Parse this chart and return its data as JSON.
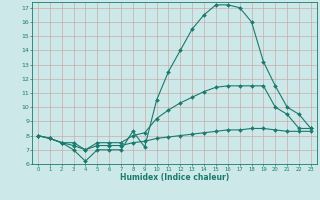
{
  "xlabel": "Humidex (Indice chaleur)",
  "xlim": [
    -0.5,
    23.5
  ],
  "ylim": [
    6,
    17.4
  ],
  "xticks": [
    0,
    1,
    2,
    3,
    4,
    5,
    6,
    7,
    8,
    9,
    10,
    11,
    12,
    13,
    14,
    15,
    16,
    17,
    18,
    19,
    20,
    21,
    22,
    23
  ],
  "yticks": [
    6,
    7,
    8,
    9,
    10,
    11,
    12,
    13,
    14,
    15,
    16,
    17
  ],
  "bg_color": "#cde8e8",
  "line_color": "#1a7a6e",
  "grid_color": "#b0d4d4",
  "curve1_x": [
    0,
    1,
    2,
    3,
    4,
    5,
    6,
    7,
    8,
    9,
    10,
    11,
    12,
    13,
    14,
    15,
    16,
    17,
    18,
    19,
    20,
    21,
    22,
    23
  ],
  "curve1_y": [
    8.0,
    7.8,
    7.5,
    7.0,
    6.2,
    7.0,
    7.0,
    7.0,
    8.3,
    7.2,
    10.5,
    12.5,
    14.0,
    15.5,
    16.5,
    17.2,
    17.2,
    17.0,
    16.0,
    13.2,
    11.5,
    10.0,
    9.5,
    8.5
  ],
  "curve2_x": [
    0,
    1,
    2,
    3,
    4,
    5,
    6,
    7,
    8,
    9,
    10,
    11,
    12,
    13,
    14,
    15,
    16,
    17,
    18,
    19,
    20,
    21,
    22,
    23
  ],
  "curve2_y": [
    8.0,
    7.8,
    7.5,
    7.5,
    7.0,
    7.5,
    7.5,
    7.5,
    8.0,
    8.2,
    9.2,
    9.8,
    10.3,
    10.7,
    11.1,
    11.4,
    11.5,
    11.5,
    11.5,
    11.5,
    10.0,
    9.5,
    8.5,
    8.5
  ],
  "curve3_x": [
    0,
    1,
    2,
    3,
    4,
    5,
    6,
    7,
    8,
    9,
    10,
    11,
    12,
    13,
    14,
    15,
    16,
    17,
    18,
    19,
    20,
    21,
    22,
    23
  ],
  "curve3_y": [
    8.0,
    7.8,
    7.5,
    7.3,
    7.0,
    7.3,
    7.3,
    7.3,
    7.5,
    7.6,
    7.8,
    7.9,
    8.0,
    8.1,
    8.2,
    8.3,
    8.4,
    8.4,
    8.5,
    8.5,
    8.4,
    8.3,
    8.3,
    8.3
  ]
}
